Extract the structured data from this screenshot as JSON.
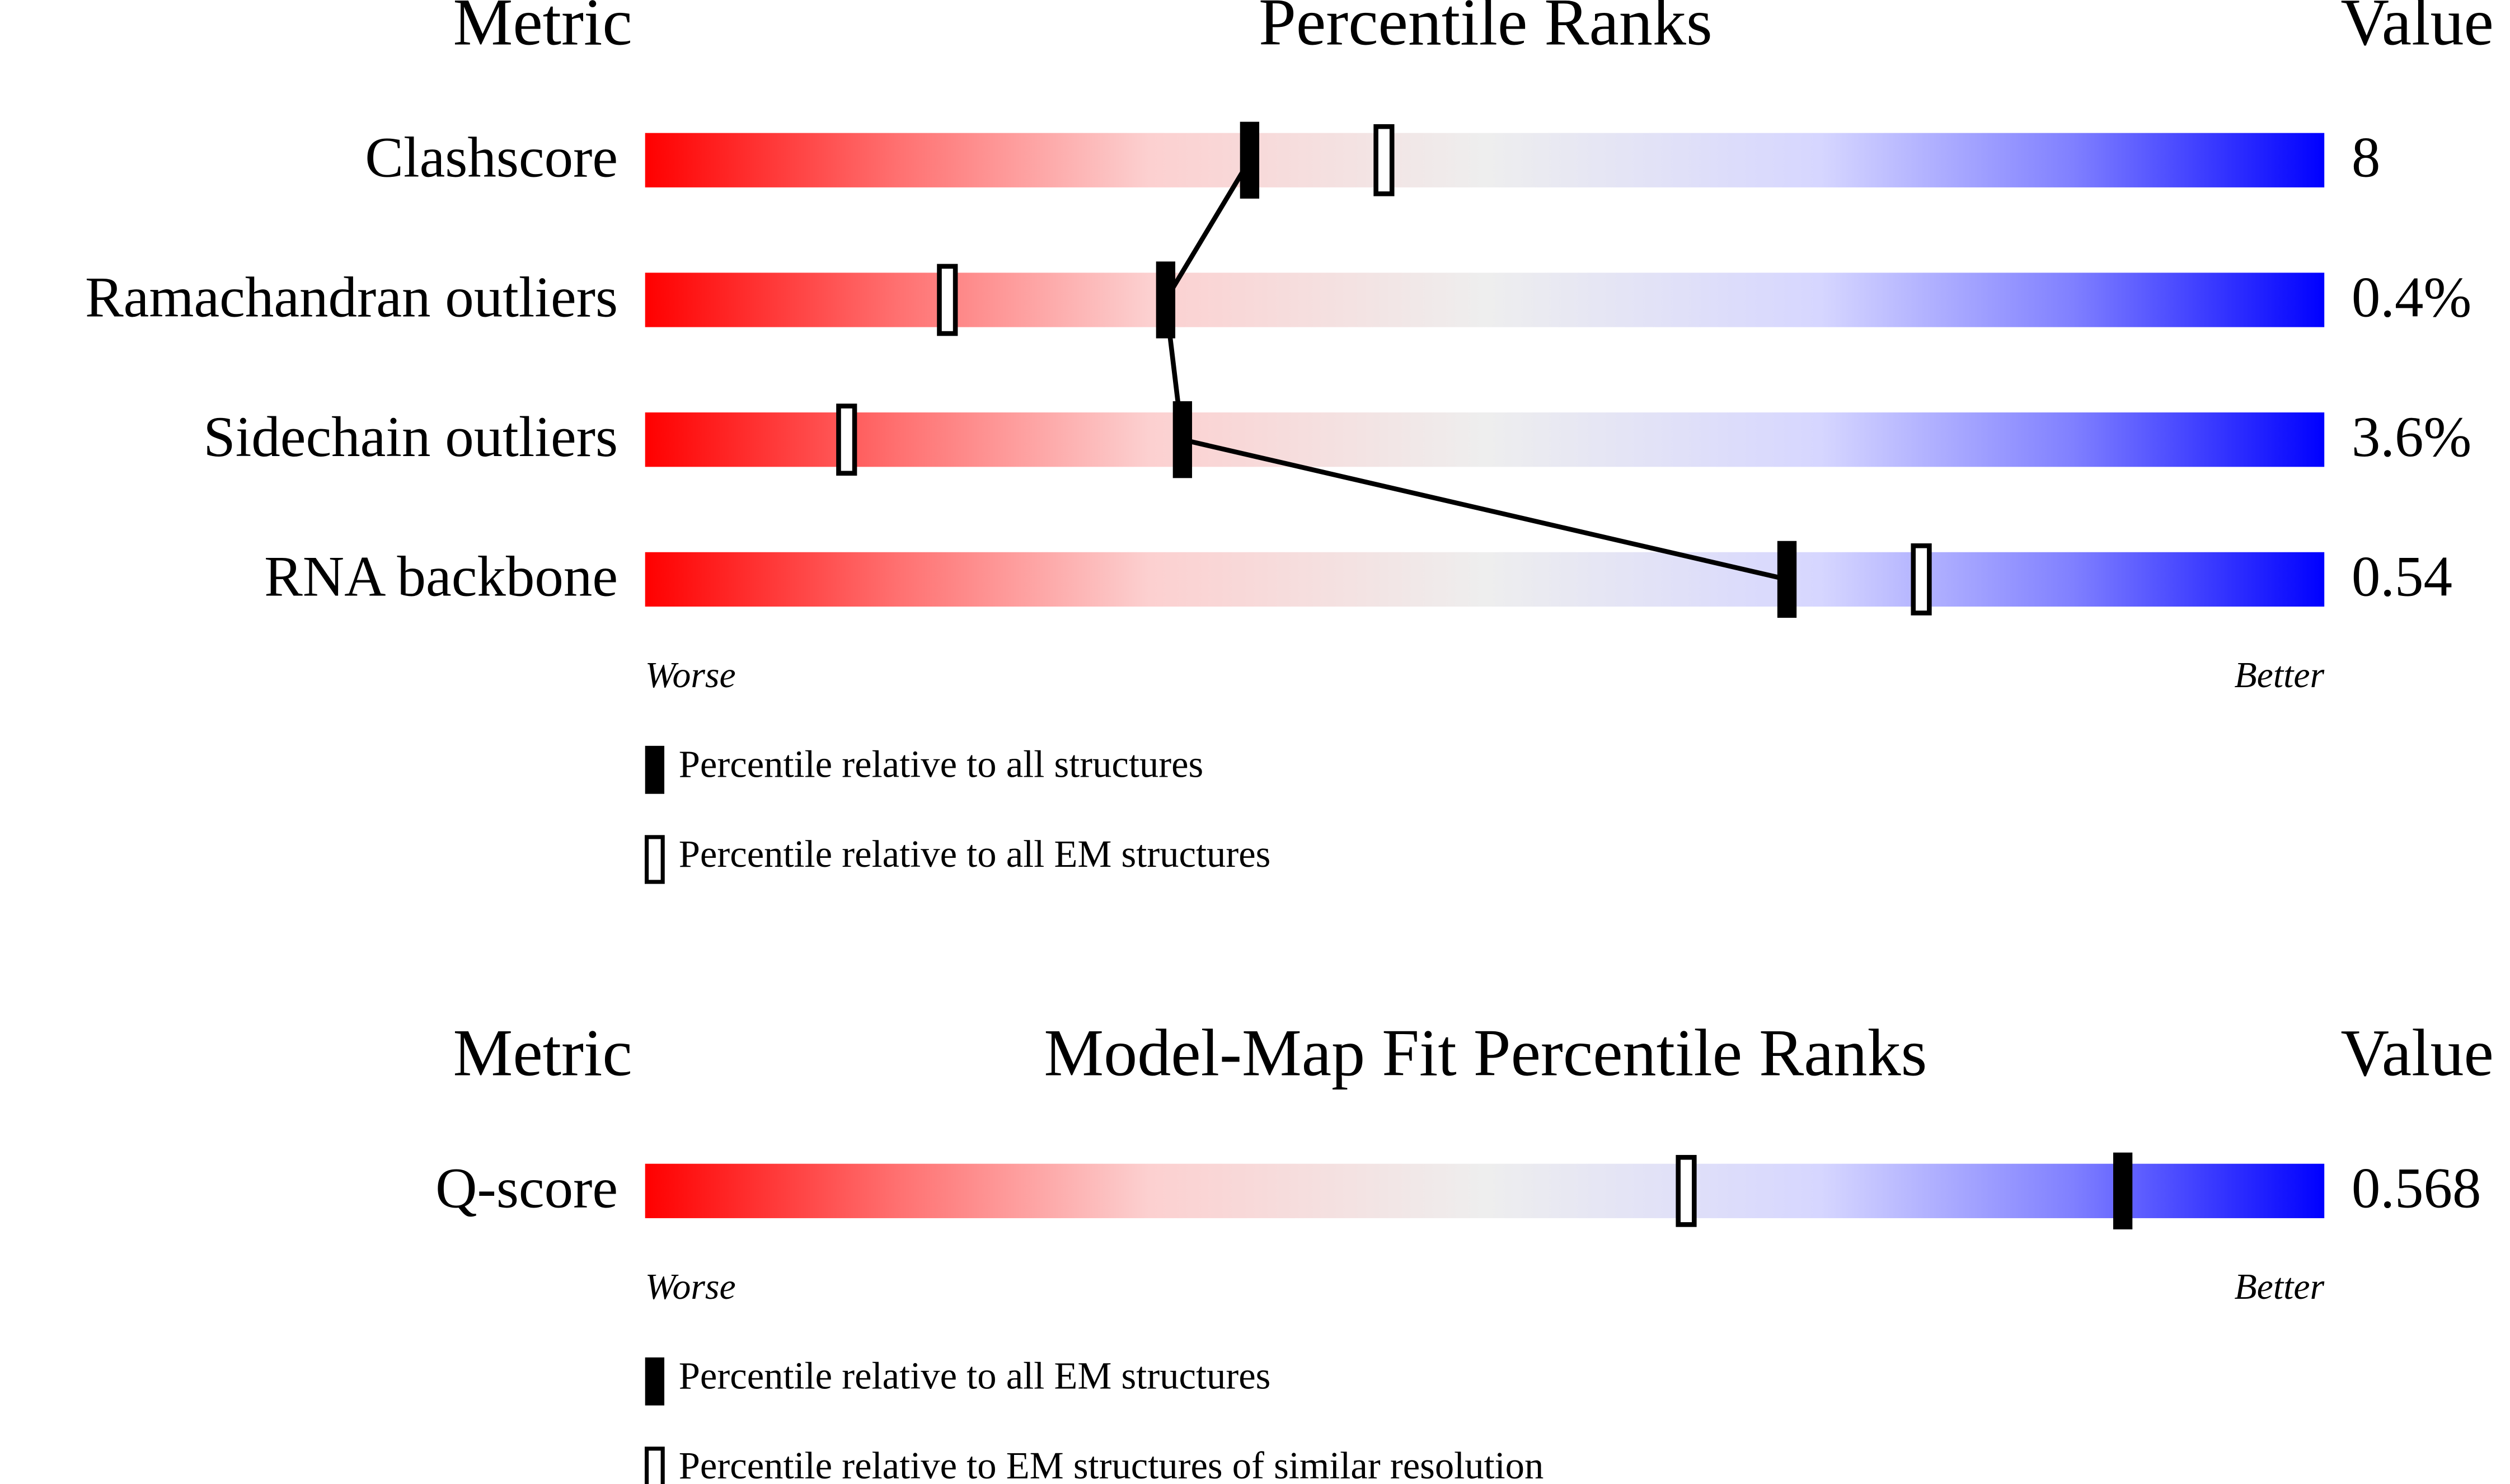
{
  "chart_data": [
    {
      "type": "slider",
      "metric_header": "Metric",
      "title": "Percentile Ranks",
      "value_header": "Value",
      "categories": [
        "Clashscore",
        "Ramachandran outliers",
        "Sidechain outliers",
        "RNA backbone"
      ],
      "metric_values": [
        "8",
        "0.4%",
        "3.6%",
        "0.54"
      ],
      "xlim": [
        0,
        100
      ],
      "low_label": "Worse",
      "high_label": "Better",
      "connect_filled": true,
      "series": [
        {
          "name": "Percentile relative to all structures",
          "marker": "filled",
          "color": "#000000",
          "values": [
            36,
            31,
            32,
            68
          ]
        },
        {
          "name": "Percentile relative to all EM structures",
          "marker": "hollow",
          "color": "#000000",
          "values": [
            44,
            18,
            12,
            76
          ]
        }
      ]
    },
    {
      "type": "slider",
      "metric_header": "Metric",
      "title": "Model-Map Fit Percentile Ranks",
      "value_header": "Value",
      "categories": [
        "Q-score"
      ],
      "metric_values": [
        "0.568"
      ],
      "xlim": [
        0,
        100
      ],
      "low_label": "Worse",
      "high_label": "Better",
      "connect_filled": true,
      "series": [
        {
          "name": "Percentile relative to all EM structures",
          "marker": "filled",
          "color": "#000000",
          "values": [
            88
          ]
        },
        {
          "name": "Percentile relative to EM structures of similar resolution",
          "marker": "hollow",
          "color": "#000000",
          "values": [
            62
          ]
        }
      ]
    }
  ]
}
